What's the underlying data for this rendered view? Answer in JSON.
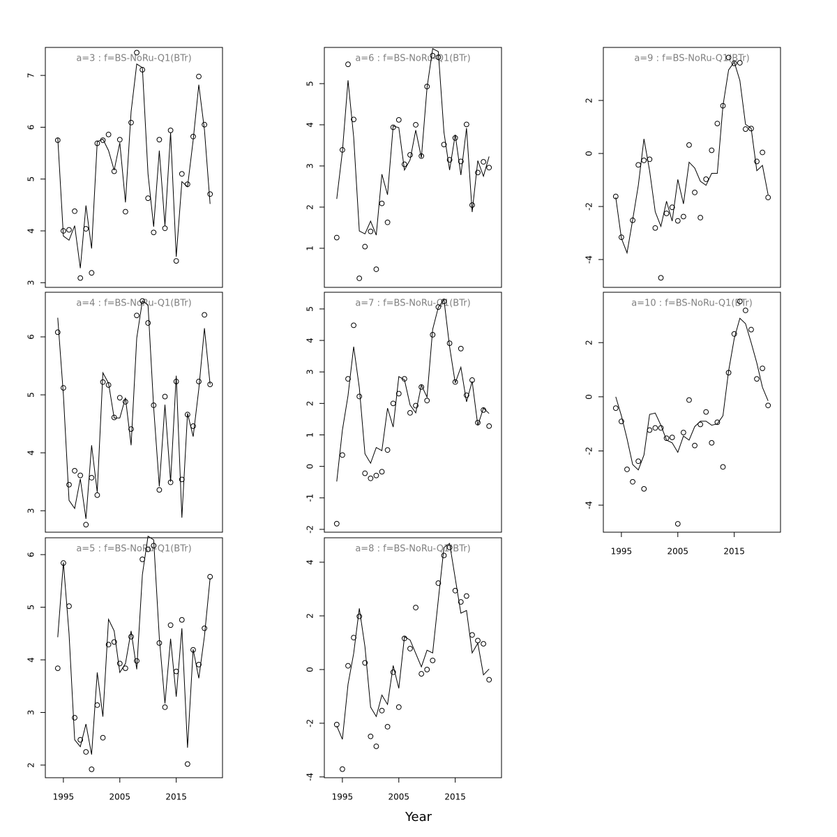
{
  "chart_data": {
    "type": "multi-panel",
    "xlabel": "Year",
    "x": [
      1994,
      1995,
      1996,
      1997,
      1998,
      1999,
      2000,
      2001,
      2002,
      2003,
      2004,
      2005,
      2006,
      2007,
      2008,
      2009,
      2010,
      2011,
      2012,
      2013,
      2014,
      2015,
      2016,
      2017,
      2018,
      2019,
      2020,
      2021
    ],
    "xlim": [
      1991.8,
      2023.2
    ],
    "xticks": [
      1995,
      2005,
      2015
    ],
    "panels": [
      {
        "title": "a=3  :  f=BS-NoRu-Q1(BTr)",
        "ylim": [
          2.91,
          7.54
        ],
        "yticks": [
          3,
          4,
          5,
          6,
          7
        ],
        "points": [
          5.75,
          4.0,
          4.02,
          4.38,
          3.09,
          4.04,
          3.19,
          5.69,
          5.75,
          5.86,
          5.15,
          5.76,
          4.37,
          6.09,
          7.44,
          7.11,
          4.63,
          3.97,
          5.76,
          4.05,
          5.94,
          3.42,
          5.1,
          4.9,
          5.82,
          6.98,
          6.05,
          4.71
        ],
        "line": [
          5.8,
          3.9,
          3.82,
          4.1,
          3.28,
          4.49,
          3.66,
          5.72,
          5.77,
          5.55,
          5.17,
          5.7,
          4.55,
          6.3,
          7.22,
          7.15,
          5.1,
          4.08,
          5.55,
          4.1,
          5.9,
          3.5,
          4.95,
          4.85,
          5.75,
          6.82,
          5.95,
          4.52
        ]
      },
      {
        "title": "a=4  :  f=BS-NoRu-Q1(BTr)",
        "ylim": [
          2.63,
          6.77
        ],
        "yticks": [
          3,
          4,
          5,
          6
        ],
        "points": [
          6.08,
          5.12,
          3.45,
          3.69,
          3.61,
          2.76,
          3.57,
          3.27,
          5.22,
          5.17,
          4.61,
          4.95,
          4.88,
          4.41,
          6.37,
          6.62,
          6.24,
          4.82,
          3.36,
          4.97,
          3.49,
          5.23,
          3.54,
          4.66,
          4.46,
          5.23,
          6.38,
          5.18
        ],
        "line": [
          6.33,
          5.0,
          3.18,
          3.04,
          3.55,
          2.86,
          4.13,
          3.32,
          5.38,
          5.2,
          4.6,
          4.6,
          4.95,
          4.13,
          5.98,
          6.62,
          6.55,
          4.78,
          3.42,
          4.83,
          3.5,
          5.33,
          2.88,
          4.68,
          4.28,
          5.1,
          6.15,
          5.18
        ]
      },
      {
        "title": "a=5  :  f=BS-NoRu-Q1(BTr)",
        "ylim": [
          1.76,
          6.32
        ],
        "yticks": [
          2,
          3,
          4,
          5,
          6
        ],
        "points": [
          3.84,
          5.84,
          5.02,
          2.9,
          2.48,
          2.25,
          1.92,
          3.14,
          2.52,
          4.29,
          4.34,
          3.93,
          3.84,
          4.44,
          3.98,
          5.91,
          6.1,
          6.17,
          4.32,
          3.1,
          4.66,
          3.78,
          4.76,
          2.02,
          4.19,
          3.91,
          4.6,
          5.58
        ],
        "line": [
          4.43,
          5.85,
          4.5,
          2.48,
          2.35,
          2.78,
          2.2,
          3.76,
          2.92,
          4.77,
          4.55,
          3.76,
          3.93,
          4.55,
          3.82,
          5.62,
          6.35,
          6.28,
          4.42,
          3.17,
          4.4,
          3.3,
          4.6,
          2.33,
          4.2,
          3.65,
          4.45,
          5.55
        ]
      },
      {
        "title": "a=6  :  f=BS-NoRu-Q1(BTr)",
        "ylim": [
          0.05,
          5.88
        ],
        "yticks": [
          1,
          2,
          3,
          4,
          5
        ],
        "points": [
          1.26,
          3.39,
          5.47,
          4.13,
          0.27,
          1.04,
          1.41,
          0.49,
          2.09,
          1.63,
          3.94,
          4.12,
          3.04,
          3.27,
          4.0,
          3.24,
          4.93,
          5.68,
          5.64,
          3.52,
          3.15,
          3.68,
          3.11,
          4.01,
          2.05,
          2.84,
          3.1,
          2.96
        ],
        "line": [
          2.2,
          3.35,
          5.08,
          3.7,
          1.42,
          1.35,
          1.66,
          1.32,
          2.8,
          2.3,
          3.97,
          3.93,
          2.9,
          3.15,
          3.87,
          3.2,
          4.9,
          5.85,
          5.78,
          3.82,
          2.9,
          3.76,
          2.78,
          3.92,
          1.88,
          3.13,
          2.75,
          3.23
        ]
      },
      {
        "title": "a=7  :  f=BS-NoRu-Q1(BTr)",
        "ylim": [
          -2.09,
          5.53
        ],
        "yticks": [
          -2,
          -1,
          0,
          1,
          2,
          3,
          4,
          5
        ],
        "points": [
          -1.82,
          0.36,
          2.78,
          4.48,
          2.22,
          -0.22,
          -0.38,
          -0.29,
          -0.17,
          0.52,
          2.0,
          2.31,
          2.78,
          1.7,
          1.93,
          2.52,
          2.09,
          4.18,
          5.06,
          5.24,
          3.91,
          2.68,
          3.74,
          2.26,
          2.74,
          1.39,
          1.79,
          1.28
        ],
        "line": [
          -0.48,
          1.15,
          2.25,
          3.8,
          2.5,
          0.4,
          0.1,
          0.6,
          0.5,
          1.85,
          1.25,
          2.85,
          2.75,
          1.95,
          1.7,
          2.58,
          2.2,
          4.35,
          5.05,
          5.3,
          3.8,
          2.65,
          3.15,
          2.05,
          2.7,
          1.3,
          1.85,
          1.68
        ]
      },
      {
        "title": "a=8  :  f=BS-NoRu-Q1(BTr)",
        "ylim": [
          -4.03,
          4.91
        ],
        "yticks": [
          -4,
          -2,
          0,
          2,
          4
        ],
        "points": [
          -2.05,
          -3.71,
          0.14,
          1.19,
          1.98,
          0.25,
          -2.49,
          -2.86,
          -1.53,
          -2.13,
          -0.1,
          -1.4,
          1.16,
          0.78,
          2.31,
          -0.16,
          0.0,
          0.34,
          3.22,
          4.25,
          4.55,
          2.94,
          2.52,
          2.74,
          1.29,
          1.08,
          0.96,
          -0.38
        ],
        "line": [
          -2.1,
          -2.6,
          -0.55,
          0.6,
          2.28,
          0.85,
          -1.4,
          -1.75,
          -0.95,
          -1.3,
          0.15,
          -0.7,
          1.22,
          1.1,
          0.6,
          0.1,
          0.72,
          0.62,
          2.6,
          4.55,
          4.7,
          3.4,
          2.1,
          2.2,
          0.62,
          0.98,
          -0.2,
          0.02
        ]
      },
      {
        "title": "a=9  :  f=BS-NoRu-Q1(BTr)",
        "ylim": [
          -5.05,
          4.0
        ],
        "yticks": [
          -4,
          -2,
          0,
          2
        ],
        "points": [
          -1.62,
          -3.16,
          null,
          -2.52,
          -0.43,
          -0.26,
          -0.22,
          -2.81,
          -4.69,
          -2.26,
          -2.03,
          -2.54,
          -2.38,
          0.32,
          -1.47,
          -2.42,
          -0.97,
          0.12,
          1.13,
          1.8,
          3.62,
          3.4,
          3.42,
          0.92,
          0.94,
          -0.3,
          0.04,
          -1.66
        ],
        "line": [
          -1.65,
          -3.2,
          -3.75,
          -2.5,
          -1.2,
          0.55,
          -0.65,
          -2.2,
          -2.75,
          -1.8,
          -2.55,
          -0.98,
          -1.9,
          -0.33,
          -0.55,
          -1.05,
          -1.2,
          -0.75,
          -0.75,
          1.8,
          3.15,
          3.45,
          2.75,
          1.1,
          0.95,
          -0.65,
          -0.45,
          -1.55
        ]
      },
      {
        "title": "a=10  :  f=BS-NoRu-Q1(BTr)",
        "ylim": [
          -5.0,
          3.86
        ],
        "yticks": [
          -4,
          -2,
          0,
          2
        ],
        "points": [
          -0.42,
          -0.91,
          -2.68,
          -3.14,
          -2.38,
          -3.4,
          -1.23,
          -1.15,
          -1.15,
          -1.53,
          -1.5,
          -4.69,
          -1.32,
          -0.12,
          -1.8,
          -1.02,
          -0.56,
          -1.7,
          -0.94,
          -2.59,
          0.89,
          2.32,
          3.52,
          3.19,
          2.48,
          0.66,
          1.05,
          -0.32
        ],
        "line": [
          0.0,
          -0.7,
          -1.55,
          -2.5,
          -2.7,
          -2.15,
          -0.65,
          -0.6,
          -1.05,
          -1.6,
          -1.7,
          -2.05,
          -1.45,
          -1.6,
          -1.1,
          -0.9,
          -0.9,
          -1.05,
          -1.0,
          -0.7,
          0.95,
          2.15,
          2.9,
          2.7,
          2.0,
          1.25,
          0.35,
          -0.15
        ]
      }
    ]
  }
}
